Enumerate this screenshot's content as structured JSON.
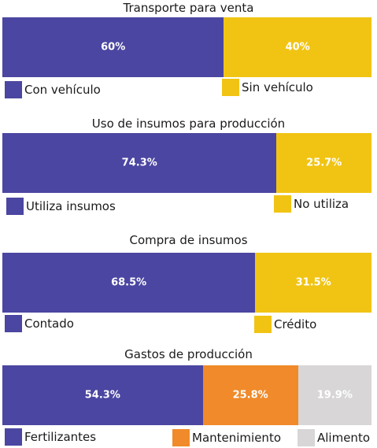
{
  "colors": {
    "blue": "#4b46a1",
    "yellow": "#f1c414",
    "orange": "#f08a2a",
    "gray": "#d8d6d6"
  },
  "chart_data": [
    {
      "type": "bar",
      "stacked": true,
      "orientation": "horizontal",
      "title": "Transporte para venta",
      "series": [
        {
          "name": "Con vehículo",
          "value": 60,
          "label": "60%",
          "color": "#4b46a1"
        },
        {
          "name": "Sin vehículo",
          "value": 40,
          "label": "40%",
          "color": "#f1c414"
        }
      ]
    },
    {
      "type": "bar",
      "stacked": true,
      "orientation": "horizontal",
      "title": "Uso de insumos para producción",
      "series": [
        {
          "name": "Utiliza insumos",
          "value": 74.3,
          "label": "74.3%",
          "color": "#4b46a1"
        },
        {
          "name": "No utiliza",
          "value": 25.7,
          "label": "25.7%",
          "color": "#f1c414"
        }
      ]
    },
    {
      "type": "bar",
      "stacked": true,
      "orientation": "horizontal",
      "title": "Compra de insumos",
      "series": [
        {
          "name": "Contado",
          "value": 68.5,
          "label": "68.5%",
          "color": "#4b46a1"
        },
        {
          "name": "Crédito",
          "value": 31.5,
          "label": "31.5%",
          "color": "#f1c414"
        }
      ]
    },
    {
      "type": "bar",
      "stacked": true,
      "orientation": "horizontal",
      "title": "Gastos de producción",
      "series": [
        {
          "name": "Fertilizantes",
          "value": 54.3,
          "label": "54.3%",
          "color": "#4b46a1"
        },
        {
          "name": "Mantenimiento",
          "value": 25.8,
          "label": "25.8%",
          "color": "#f08a2a"
        },
        {
          "name": "Alimento",
          "value": 19.9,
          "label": "19.9%",
          "color": "#d8d6d6"
        }
      ]
    }
  ]
}
